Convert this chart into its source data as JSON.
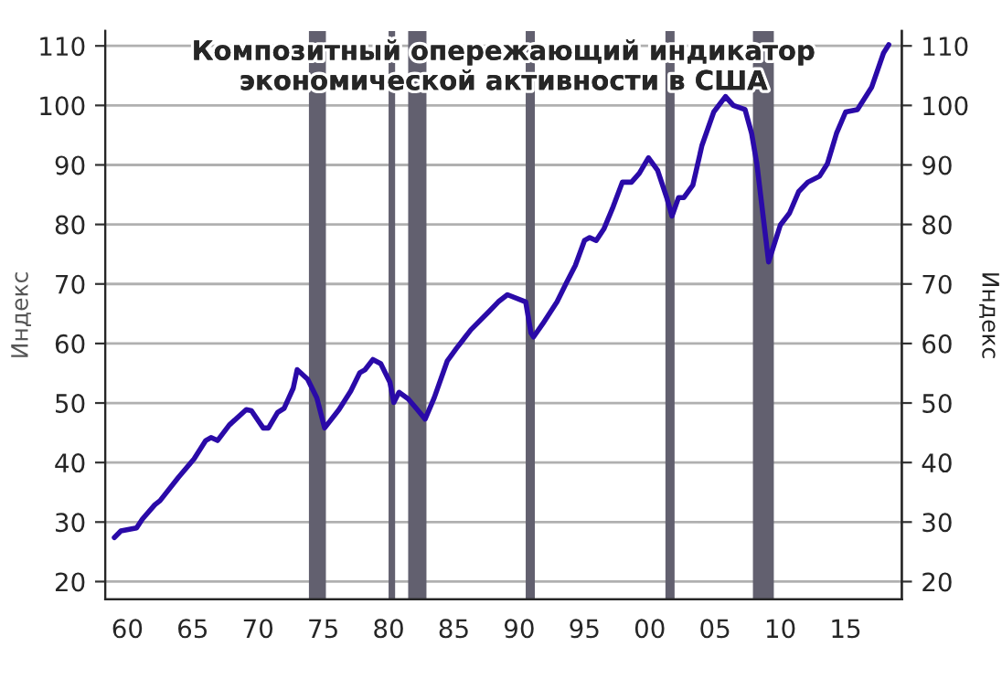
{
  "chart_data": {
    "type": "line",
    "title": "Композитный опережающий индикатор\nэкономической активности в США",
    "ylabel": "Индекс",
    "y2label": "Индекс",
    "series": [
      {
        "color": "#2a0aa8",
        "x": [
          1959.0,
          1959.5,
          1960.7,
          1961.15,
          1962.1,
          1962.5,
          1963.9,
          1965.1,
          1966.0,
          1966.4,
          1966.9,
          1967.8,
          1969.1,
          1969.5,
          1970.4,
          1970.8,
          1971.5,
          1972.0,
          1972.7,
          1973.0,
          1973.8,
          1974.5,
          1975.1,
          1976.2,
          1977.1,
          1977.8,
          1978.2,
          1978.8,
          1979.4,
          1980.1,
          1980.4,
          1980.8,
          1981.5,
          1982.2,
          1982.8,
          1983.5,
          1984.5,
          1985.2,
          1986.3,
          1987.7,
          1988.4,
          1989.1,
          1990.5,
          1990.9,
          1991.1,
          1991.8,
          1992.9,
          1993.6,
          1994.3,
          1995.0,
          1995.4,
          1995.9,
          1996.5,
          1997.2,
          1997.9,
          1998.6,
          1999.2,
          1999.9,
          2000.6,
          2001.3,
          2001.7,
          2002.2,
          2002.6,
          2003.3,
          2004.0,
          2004.9,
          2005.8,
          2006.4,
          2007.3,
          2007.8,
          2008.2,
          2009.1,
          2010.0,
          2010.7,
          2011.4,
          2012.1,
          2013.0,
          2013.6,
          2014.3,
          2015.0,
          2015.9,
          2017.0,
          2017.9,
          2018.3
        ],
        "values": [
          27.4,
          28.5,
          29.0,
          30.5,
          32.9,
          33.6,
          37.5,
          40.6,
          43.7,
          44.2,
          43.7,
          46.3,
          48.9,
          48.7,
          45.8,
          45.8,
          48.4,
          49.1,
          52.5,
          55.6,
          54.0,
          50.9,
          45.8,
          48.9,
          52.0,
          55.1,
          55.6,
          57.3,
          56.6,
          53.5,
          50.1,
          51.8,
          50.7,
          48.9,
          47.3,
          50.9,
          57.1,
          59.2,
          62.3,
          65.4,
          67.0,
          68.2,
          67.0,
          61.8,
          61.1,
          63.3,
          67.0,
          70.1,
          73.1,
          77.3,
          77.8,
          77.3,
          79.3,
          83.0,
          87.1,
          87.1,
          88.6,
          91.2,
          89.1,
          84.5,
          81.4,
          84.5,
          84.5,
          86.6,
          93.3,
          98.9,
          101.5,
          100.0,
          99.3,
          95.3,
          90.2,
          73.7,
          79.9,
          81.9,
          85.5,
          87.1,
          88.1,
          90.2,
          95.3,
          98.9,
          99.3,
          103.1,
          108.8,
          110.2
        ]
      }
    ],
    "bands": [
      {
        "axis": "x",
        "from": 1973.9,
        "to": 1975.2,
        "color": "#62606f"
      },
      {
        "axis": "x",
        "from": 1980.0,
        "to": 1980.5,
        "color": "#62606f"
      },
      {
        "axis": "x",
        "from": 1981.5,
        "to": 1982.9,
        "color": "#62606f"
      },
      {
        "axis": "x",
        "from": 1990.5,
        "to": 1991.2,
        "color": "#62606f"
      },
      {
        "axis": "x",
        "from": 2001.2,
        "to": 2001.9,
        "color": "#62606f"
      },
      {
        "axis": "x",
        "from": 2007.9,
        "to": 2009.5,
        "color": "#62606f"
      }
    ],
    "xlim": [
      1958.3,
      2019.3
    ],
    "xticks": [
      {
        "value": 1960,
        "label": "60"
      },
      {
        "value": 1965,
        "label": "65"
      },
      {
        "value": 1970,
        "label": "70"
      },
      {
        "value": 1975,
        "label": "75"
      },
      {
        "value": 1980,
        "label": "80"
      },
      {
        "value": 1985,
        "label": "85"
      },
      {
        "value": 1990,
        "label": "90"
      },
      {
        "value": 1995,
        "label": "95"
      },
      {
        "value": 2000,
        "label": "00"
      },
      {
        "value": 2005,
        "label": "05"
      },
      {
        "value": 2010,
        "label": "10"
      },
      {
        "value": 2015,
        "label": "15"
      }
    ],
    "ylim": [
      17,
      112.5
    ],
    "yticks": [
      20,
      30,
      40,
      50,
      60,
      70,
      80,
      90,
      100,
      110
    ],
    "y2lim": [
      17,
      112.5
    ],
    "y2ticks": [
      20,
      30,
      40,
      50,
      60,
      70,
      80,
      90,
      100,
      110
    ],
    "grid": "y",
    "marker": "none",
    "line_style": "solid",
    "legend": false
  }
}
